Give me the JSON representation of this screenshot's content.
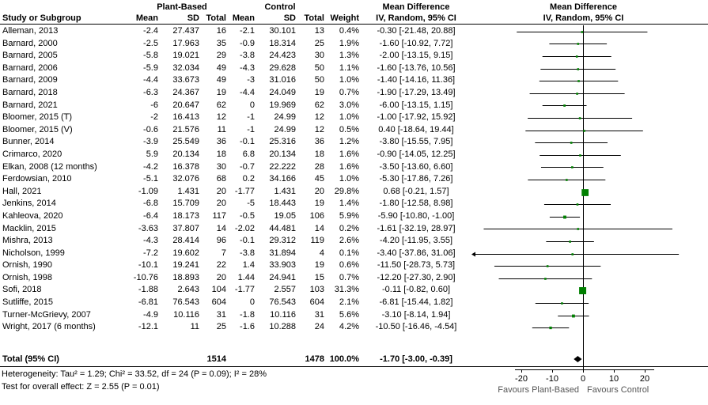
{
  "header": {
    "group1": "Plant-Based",
    "group2": "Control",
    "mean_diff": "Mean Difference",
    "study": "Study or Subgroup",
    "mean": "Mean",
    "sd": "SD",
    "total": "Total",
    "weight": "Weight",
    "ci_method": "IV, Random, 95% CI"
  },
  "chart_data": {
    "type": "scatter",
    "subtype": "forest-plot",
    "effect_measure": "Mean Difference",
    "model": "IV, Random, 95% CI",
    "x_ticks": [
      -20,
      -10,
      0,
      10,
      20
    ],
    "xlim": [
      -35,
      36
    ],
    "favours_left": "Favours Plant-Based",
    "favours_right": "Favours Control",
    "marker_color": "#008000",
    "studies": [
      {
        "name": "Alleman, 2013",
        "mean1": "-2.4",
        "sd1": "27.437",
        "n1": "16",
        "mean2": "-2.1",
        "sd2": "30.101",
        "n2": "13",
        "weight": 0.4,
        "est": -0.3,
        "lo": -21.48,
        "hi": 20.88
      },
      {
        "name": "Barnard, 2000",
        "mean1": "-2.5",
        "sd1": "17.963",
        "n1": "35",
        "mean2": "-0.9",
        "sd2": "18.314",
        "n2": "25",
        "weight": 1.9,
        "est": -1.6,
        "lo": -10.92,
        "hi": 7.72
      },
      {
        "name": "Barnard, 2005",
        "mean1": "-5.8",
        "sd1": "19.021",
        "n1": "29",
        "mean2": "-3.8",
        "sd2": "24.423",
        "n2": "30",
        "weight": 1.3,
        "est": -2.0,
        "lo": -13.15,
        "hi": 9.15
      },
      {
        "name": "Barnard, 2006",
        "mean1": "-5.9",
        "sd1": "32.034",
        "n1": "49",
        "mean2": "-4.3",
        "sd2": "29.628",
        "n2": "50",
        "weight": 1.1,
        "est": -1.6,
        "lo": -13.76,
        "hi": 10.56
      },
      {
        "name": "Barnard, 2009",
        "mean1": "-4.4",
        "sd1": "33.673",
        "n1": "49",
        "mean2": "-3",
        "sd2": "31.016",
        "n2": "50",
        "weight": 1.0,
        "est": -1.4,
        "lo": -14.16,
        "hi": 11.36
      },
      {
        "name": "Barnard, 2018",
        "mean1": "-6.3",
        "sd1": "24.367",
        "n1": "19",
        "mean2": "-4.4",
        "sd2": "24.049",
        "n2": "19",
        "weight": 0.7,
        "est": -1.9,
        "lo": -17.29,
        "hi": 13.49
      },
      {
        "name": "Barnard, 2021",
        "mean1": "-6",
        "sd1": "20.647",
        "n1": "62",
        "mean2": "0",
        "sd2": "19.969",
        "n2": "62",
        "weight": 3.0,
        "est": -6.0,
        "lo": -13.15,
        "hi": 1.15
      },
      {
        "name": "Bloomer, 2015 (T)",
        "mean1": "-2",
        "sd1": "16.413",
        "n1": "12",
        "mean2": "-1",
        "sd2": "24.99",
        "n2": "12",
        "weight": 1.0,
        "est": -1.0,
        "lo": -17.92,
        "hi": 15.92
      },
      {
        "name": "Bloomer, 2015 (V)",
        "mean1": "-0.6",
        "sd1": "21.576",
        "n1": "11",
        "mean2": "-1",
        "sd2": "24.99",
        "n2": "12",
        "weight": 0.5,
        "est": 0.4,
        "lo": -18.64,
        "hi": 19.44
      },
      {
        "name": "Bunner, 2014",
        "mean1": "-3.9",
        "sd1": "25.549",
        "n1": "36",
        "mean2": "-0.1",
        "sd2": "25.316",
        "n2": "36",
        "weight": 1.2,
        "est": -3.8,
        "lo": -15.55,
        "hi": 7.95
      },
      {
        "name": "Crimarco, 2020",
        "mean1": "5.9",
        "sd1": "20.134",
        "n1": "18",
        "mean2": "6.8",
        "sd2": "20.134",
        "n2": "18",
        "weight": 1.6,
        "est": -0.9,
        "lo": -14.05,
        "hi": 12.25
      },
      {
        "name": "Elkan, 2008 (12 months)",
        "mean1": "-4.2",
        "sd1": "16.378",
        "n1": "30",
        "mean2": "-0.7",
        "sd2": "22.222",
        "n2": "28",
        "weight": 1.6,
        "est": -3.5,
        "lo": -13.6,
        "hi": 6.6
      },
      {
        "name": "Ferdowsian, 2010",
        "mean1": "-5.1",
        "sd1": "32.076",
        "n1": "68",
        "mean2": "0.2",
        "sd2": "34.166",
        "n2": "45",
        "weight": 1.0,
        "est": -5.3,
        "lo": -17.86,
        "hi": 7.26
      },
      {
        "name": "Hall, 2021",
        "mean1": "-1.09",
        "sd1": "1.431",
        "n1": "20",
        "mean2": "-1.77",
        "sd2": "1.431",
        "n2": "20",
        "weight": 29.8,
        "est": 0.68,
        "lo": -0.21,
        "hi": 1.57
      },
      {
        "name": "Jenkins, 2014",
        "mean1": "-6.8",
        "sd1": "15.709",
        "n1": "20",
        "mean2": "-5",
        "sd2": "18.443",
        "n2": "19",
        "weight": 1.4,
        "est": -1.8,
        "lo": -12.58,
        "hi": 8.98
      },
      {
        "name": "Kahleova, 2020",
        "mean1": "-6.4",
        "sd1": "18.173",
        "n1": "117",
        "mean2": "-0.5",
        "sd2": "19.05",
        "n2": "106",
        "weight": 5.9,
        "est": -5.9,
        "lo": -10.8,
        "hi": -1.0
      },
      {
        "name": "Macklin, 2015",
        "mean1": "-3.63",
        "sd1": "37.807",
        "n1": "14",
        "mean2": "-2.02",
        "sd2": "44.481",
        "n2": "14",
        "weight": 0.2,
        "est": -1.61,
        "lo": -32.19,
        "hi": 28.97
      },
      {
        "name": "Mishra, 2013",
        "mean1": "-4.3",
        "sd1": "28.414",
        "n1": "96",
        "mean2": "-0.1",
        "sd2": "29.312",
        "n2": "119",
        "weight": 2.6,
        "est": -4.2,
        "lo": -11.95,
        "hi": 3.55
      },
      {
        "name": "Nicholson, 1999",
        "mean1": "-7.2",
        "sd1": "19.602",
        "n1": "7",
        "mean2": "-3.8",
        "sd2": "31.894",
        "n2": "4",
        "weight": 0.1,
        "est": -3.4,
        "lo": -37.86,
        "hi": 31.06
      },
      {
        "name": "Ornish, 1990",
        "mean1": "-10.1",
        "sd1": "19.241",
        "n1": "22",
        "mean2": "1.4",
        "sd2": "33.903",
        "n2": "19",
        "weight": 0.6,
        "est": -11.5,
        "lo": -28.73,
        "hi": 5.73
      },
      {
        "name": "Ornish, 1998",
        "mean1": "-10.76",
        "sd1": "18.893",
        "n1": "20",
        "mean2": "1.44",
        "sd2": "24.941",
        "n2": "15",
        "weight": 0.7,
        "est": -12.2,
        "lo": -27.3,
        "hi": 2.9
      },
      {
        "name": "Sofi, 2018",
        "mean1": "-1.88",
        "sd1": "2.643",
        "n1": "104",
        "mean2": "-1.77",
        "sd2": "2.557",
        "n2": "103",
        "weight": 31.3,
        "est": -0.11,
        "lo": -0.82,
        "hi": 0.6
      },
      {
        "name": "Sutliffe, 2015",
        "mean1": "-6.81",
        "sd1": "76.543",
        "n1": "604",
        "mean2": "0",
        "sd2": "76.543",
        "n2": "604",
        "weight": 2.1,
        "est": -6.81,
        "lo": -15.44,
        "hi": 1.82
      },
      {
        "name": "Turner-McGrievy, 2007",
        "mean1": "-4.9",
        "sd1": "10.116",
        "n1": "31",
        "mean2": "-1.8",
        "sd2": "10.116",
        "n2": "31",
        "weight": 5.6,
        "est": -3.1,
        "lo": -8.14,
        "hi": 1.94
      },
      {
        "name": "Wright, 2017 (6 months)",
        "mean1": "-12.1",
        "sd1": "11",
        "n1": "25",
        "mean2": "-1.6",
        "sd2": "10.288",
        "n2": "24",
        "weight": 4.2,
        "est": -10.5,
        "lo": -16.46,
        "hi": -4.54
      }
    ],
    "total": {
      "label": "Total (95% CI)",
      "n1": "1514",
      "n2": "1478",
      "weight": "100.0%",
      "est": -1.7,
      "lo": -3.0,
      "hi": -0.39
    }
  },
  "footer": {
    "heterogeneity": "Heterogeneity: Tau² = 1.29; Chi² = 33.52, df = 24 (P = 0.09); I² = 28%",
    "overall_effect": "Test for overall effect: Z = 2.55 (P = 0.01)"
  }
}
